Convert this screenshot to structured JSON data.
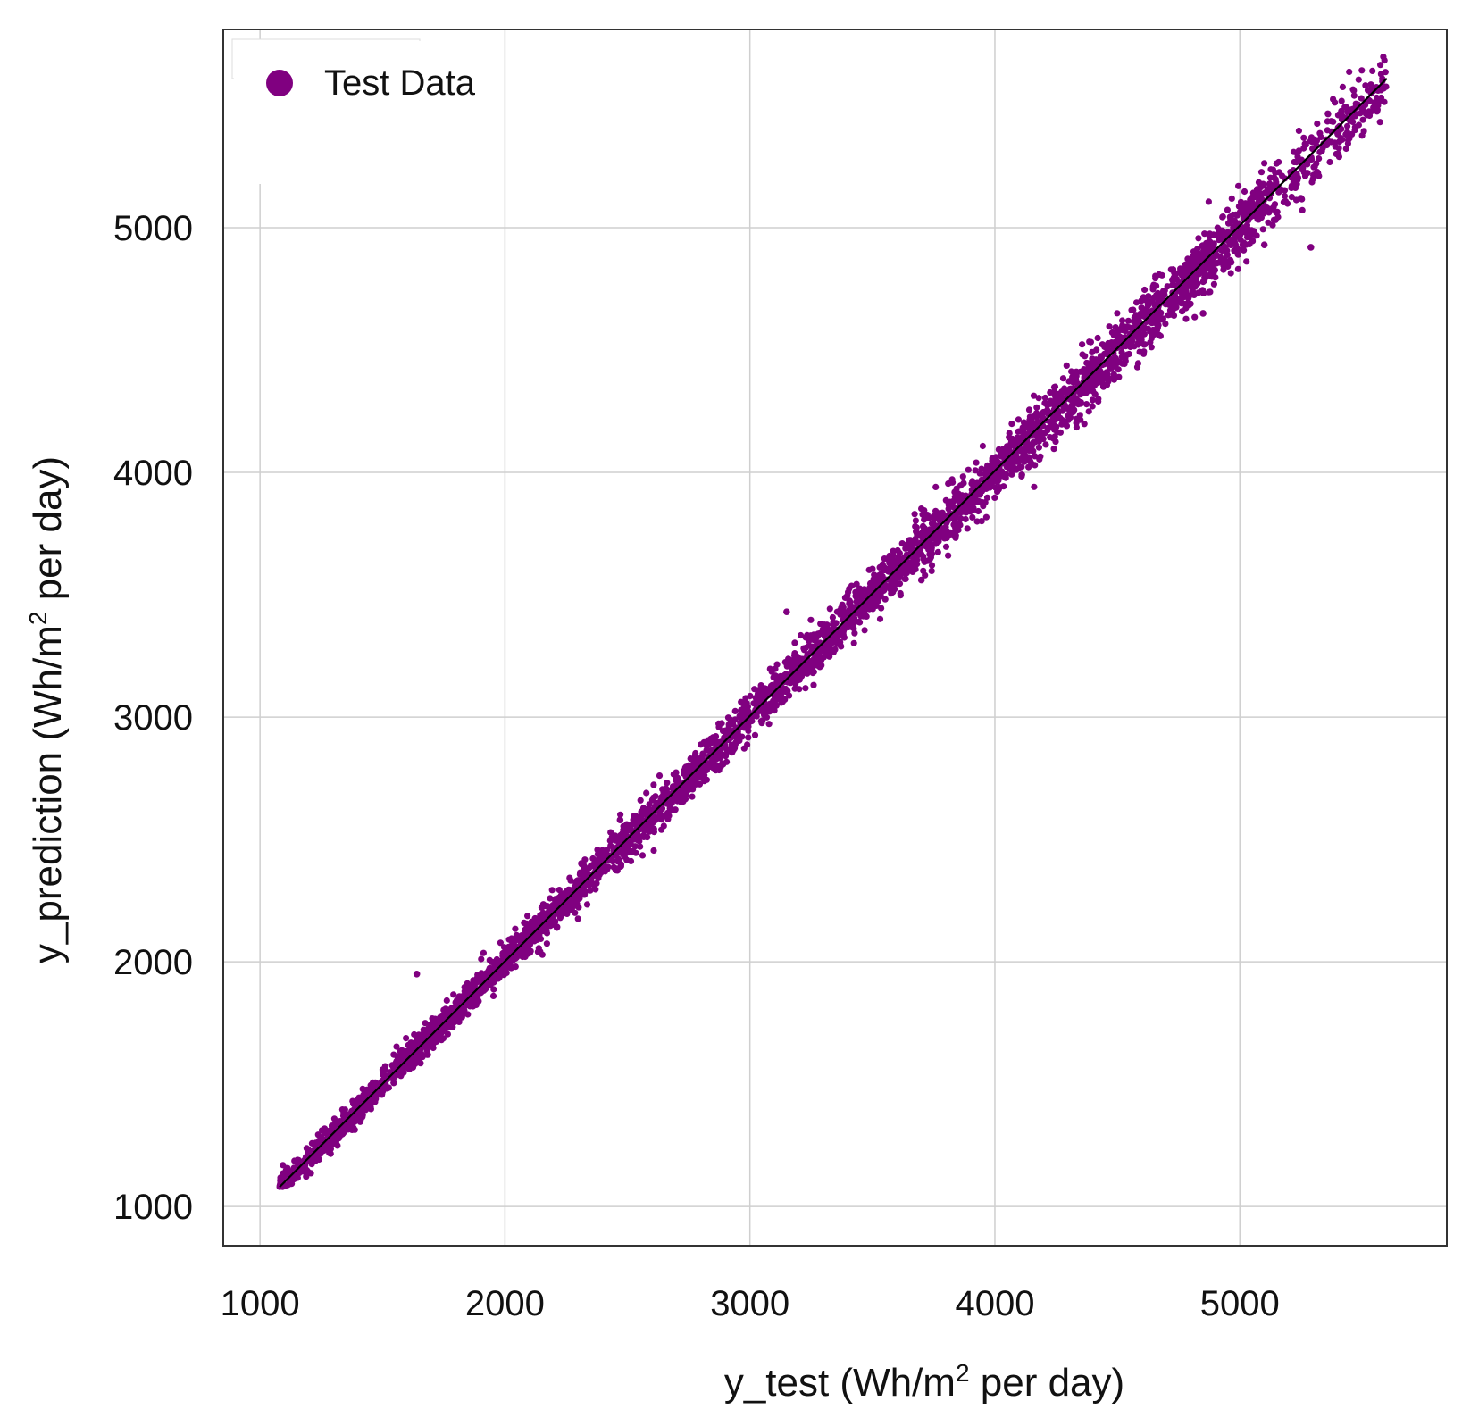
{
  "chart_data": {
    "type": "scatter",
    "xlabel": {
      "prefix": "y_test (Wh/m",
      "sup": "2",
      "suffix": " per day)"
    },
    "ylabel": {
      "prefix": "y_prediction (Wh/m",
      "sup": "2",
      "suffix": " per day)"
    },
    "xlim": [
      850,
      5845
    ],
    "ylim": [
      840,
      5810
    ],
    "xticks": [
      1000,
      2000,
      3000,
      4000,
      5000
    ],
    "yticks": [
      1000,
      2000,
      3000,
      4000,
      5000
    ],
    "grid": true,
    "legend": {
      "position": "top-left",
      "entries": [
        "Test Data"
      ]
    },
    "series": [
      {
        "name": "Test Data",
        "color": "#800080",
        "x_range": [
          1080,
          5600
        ],
        "y_range": [
          1080,
          5570
        ],
        "relationship": "y ≈ x",
        "spread_std": 45,
        "approx_point_count": 4500,
        "outliers": [
          {
            "x": 1640,
            "y": 1950
          },
          {
            "x": 2470,
            "y": 2580
          },
          {
            "x": 3150,
            "y": 3430
          },
          {
            "x": 3700,
            "y": 3560
          },
          {
            "x": 4110,
            "y": 3990
          },
          {
            "x": 4850,
            "y": 4650
          },
          {
            "x": 5100,
            "y": 4930
          },
          {
            "x": 5290,
            "y": 4920
          }
        ]
      }
    ],
    "reference_line": {
      "label": "y = x",
      "from": [
        1080,
        1080
      ],
      "to": [
        5600,
        5610
      ],
      "color": "#000000"
    }
  }
}
